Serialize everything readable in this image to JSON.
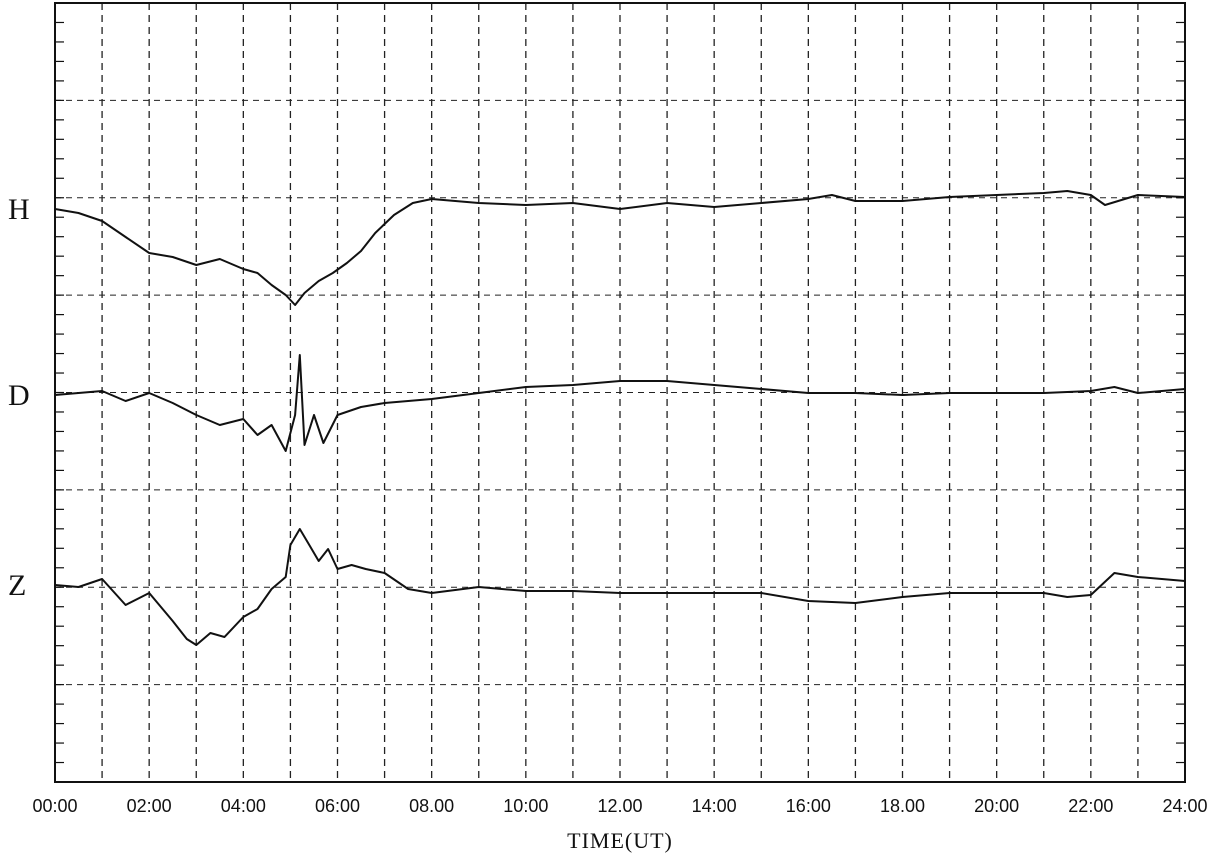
{
  "chart_data": {
    "type": "line",
    "title": "",
    "xlabel": "TIME(UT)",
    "ylabel": "",
    "xlim": [
      0,
      24
    ],
    "grid": true,
    "x_tick_labels": [
      "00:00",
      "02:00",
      "04:00",
      "06:00",
      "08.00",
      "10:00",
      "12.00",
      "14:00",
      "16:00",
      "18.00",
      "20:00",
      "22:00",
      "24:00"
    ],
    "series": [
      {
        "name": "H",
        "x": [
          0,
          0.5,
          1,
          1.5,
          2,
          2.5,
          3,
          3.5,
          4,
          4.3,
          4.6,
          4.9,
          5.1,
          5.3,
          5.6,
          5.9,
          6.2,
          6.5,
          6.8,
          7.2,
          7.6,
          8,
          9,
          10,
          11,
          12,
          13,
          14,
          15,
          16,
          16.5,
          17,
          18,
          19,
          20,
          21,
          21.5,
          22,
          22.3,
          23,
          24
        ],
        "y": [
          0,
          -0.2,
          -0.6,
          -1.4,
          -2.2,
          -2.4,
          -2.8,
          -2.5,
          -3.0,
          -3.2,
          -3.8,
          -4.3,
          -4.8,
          -4.2,
          -3.6,
          -3.2,
          -2.7,
          -2.1,
          -1.2,
          -0.3,
          0.3,
          0.5,
          0.3,
          0.2,
          0.3,
          0.0,
          0.3,
          0.1,
          0.3,
          0.5,
          0.7,
          0.4,
          0.4,
          0.6,
          0.7,
          0.8,
          0.9,
          0.7,
          0.2,
          0.7,
          0.6
        ]
      },
      {
        "name": "D",
        "x": [
          0,
          0.5,
          1,
          1.5,
          2,
          2.5,
          3,
          3.5,
          4,
          4.3,
          4.6,
          4.9,
          5.1,
          5.2,
          5.3,
          5.5,
          5.7,
          6,
          6.5,
          7,
          8,
          9,
          10,
          11,
          12,
          13,
          14,
          15,
          16,
          17,
          18,
          19,
          20,
          21,
          22,
          22.5,
          23,
          24
        ],
        "y": [
          0,
          0.1,
          0.2,
          -0.3,
          0.1,
          -0.4,
          -1.0,
          -1.5,
          -1.2,
          -2.0,
          -1.5,
          -2.8,
          -1.0,
          2.0,
          -2.5,
          -1.0,
          -2.4,
          -1.0,
          -0.6,
          -0.4,
          -0.2,
          0.1,
          0.4,
          0.5,
          0.7,
          0.7,
          0.5,
          0.3,
          0.1,
          0.1,
          0.0,
          0.1,
          0.1,
          0.1,
          0.2,
          0.4,
          0.1,
          0.3
        ]
      },
      {
        "name": "Z",
        "x": [
          0,
          0.5,
          1,
          1.5,
          2,
          2.5,
          2.8,
          3,
          3.3,
          3.6,
          4,
          4.3,
          4.6,
          4.9,
          5,
          5.2,
          5.4,
          5.6,
          5.8,
          6,
          6.3,
          6.6,
          7,
          7.5,
          8,
          9,
          10,
          11,
          12,
          13,
          14,
          15,
          16,
          17,
          18,
          19,
          20,
          21,
          21.5,
          22,
          22.5,
          23,
          24
        ],
        "y": [
          0,
          -0.1,
          0.3,
          -1.0,
          -0.4,
          -1.8,
          -2.7,
          -3.0,
          -2.4,
          -2.6,
          -1.6,
          -1.2,
          -0.2,
          0.4,
          2.0,
          2.8,
          2.0,
          1.2,
          1.8,
          0.8,
          1.0,
          0.8,
          0.6,
          -0.2,
          -0.4,
          -0.1,
          -0.3,
          -0.3,
          -0.4,
          -0.4,
          -0.4,
          -0.4,
          -0.8,
          -0.9,
          -0.6,
          -0.4,
          -0.4,
          -0.4,
          -0.6,
          -0.5,
          0.6,
          0.4,
          0.2
        ]
      }
    ]
  },
  "axis": {
    "xlabel": "TIME(UT)"
  }
}
